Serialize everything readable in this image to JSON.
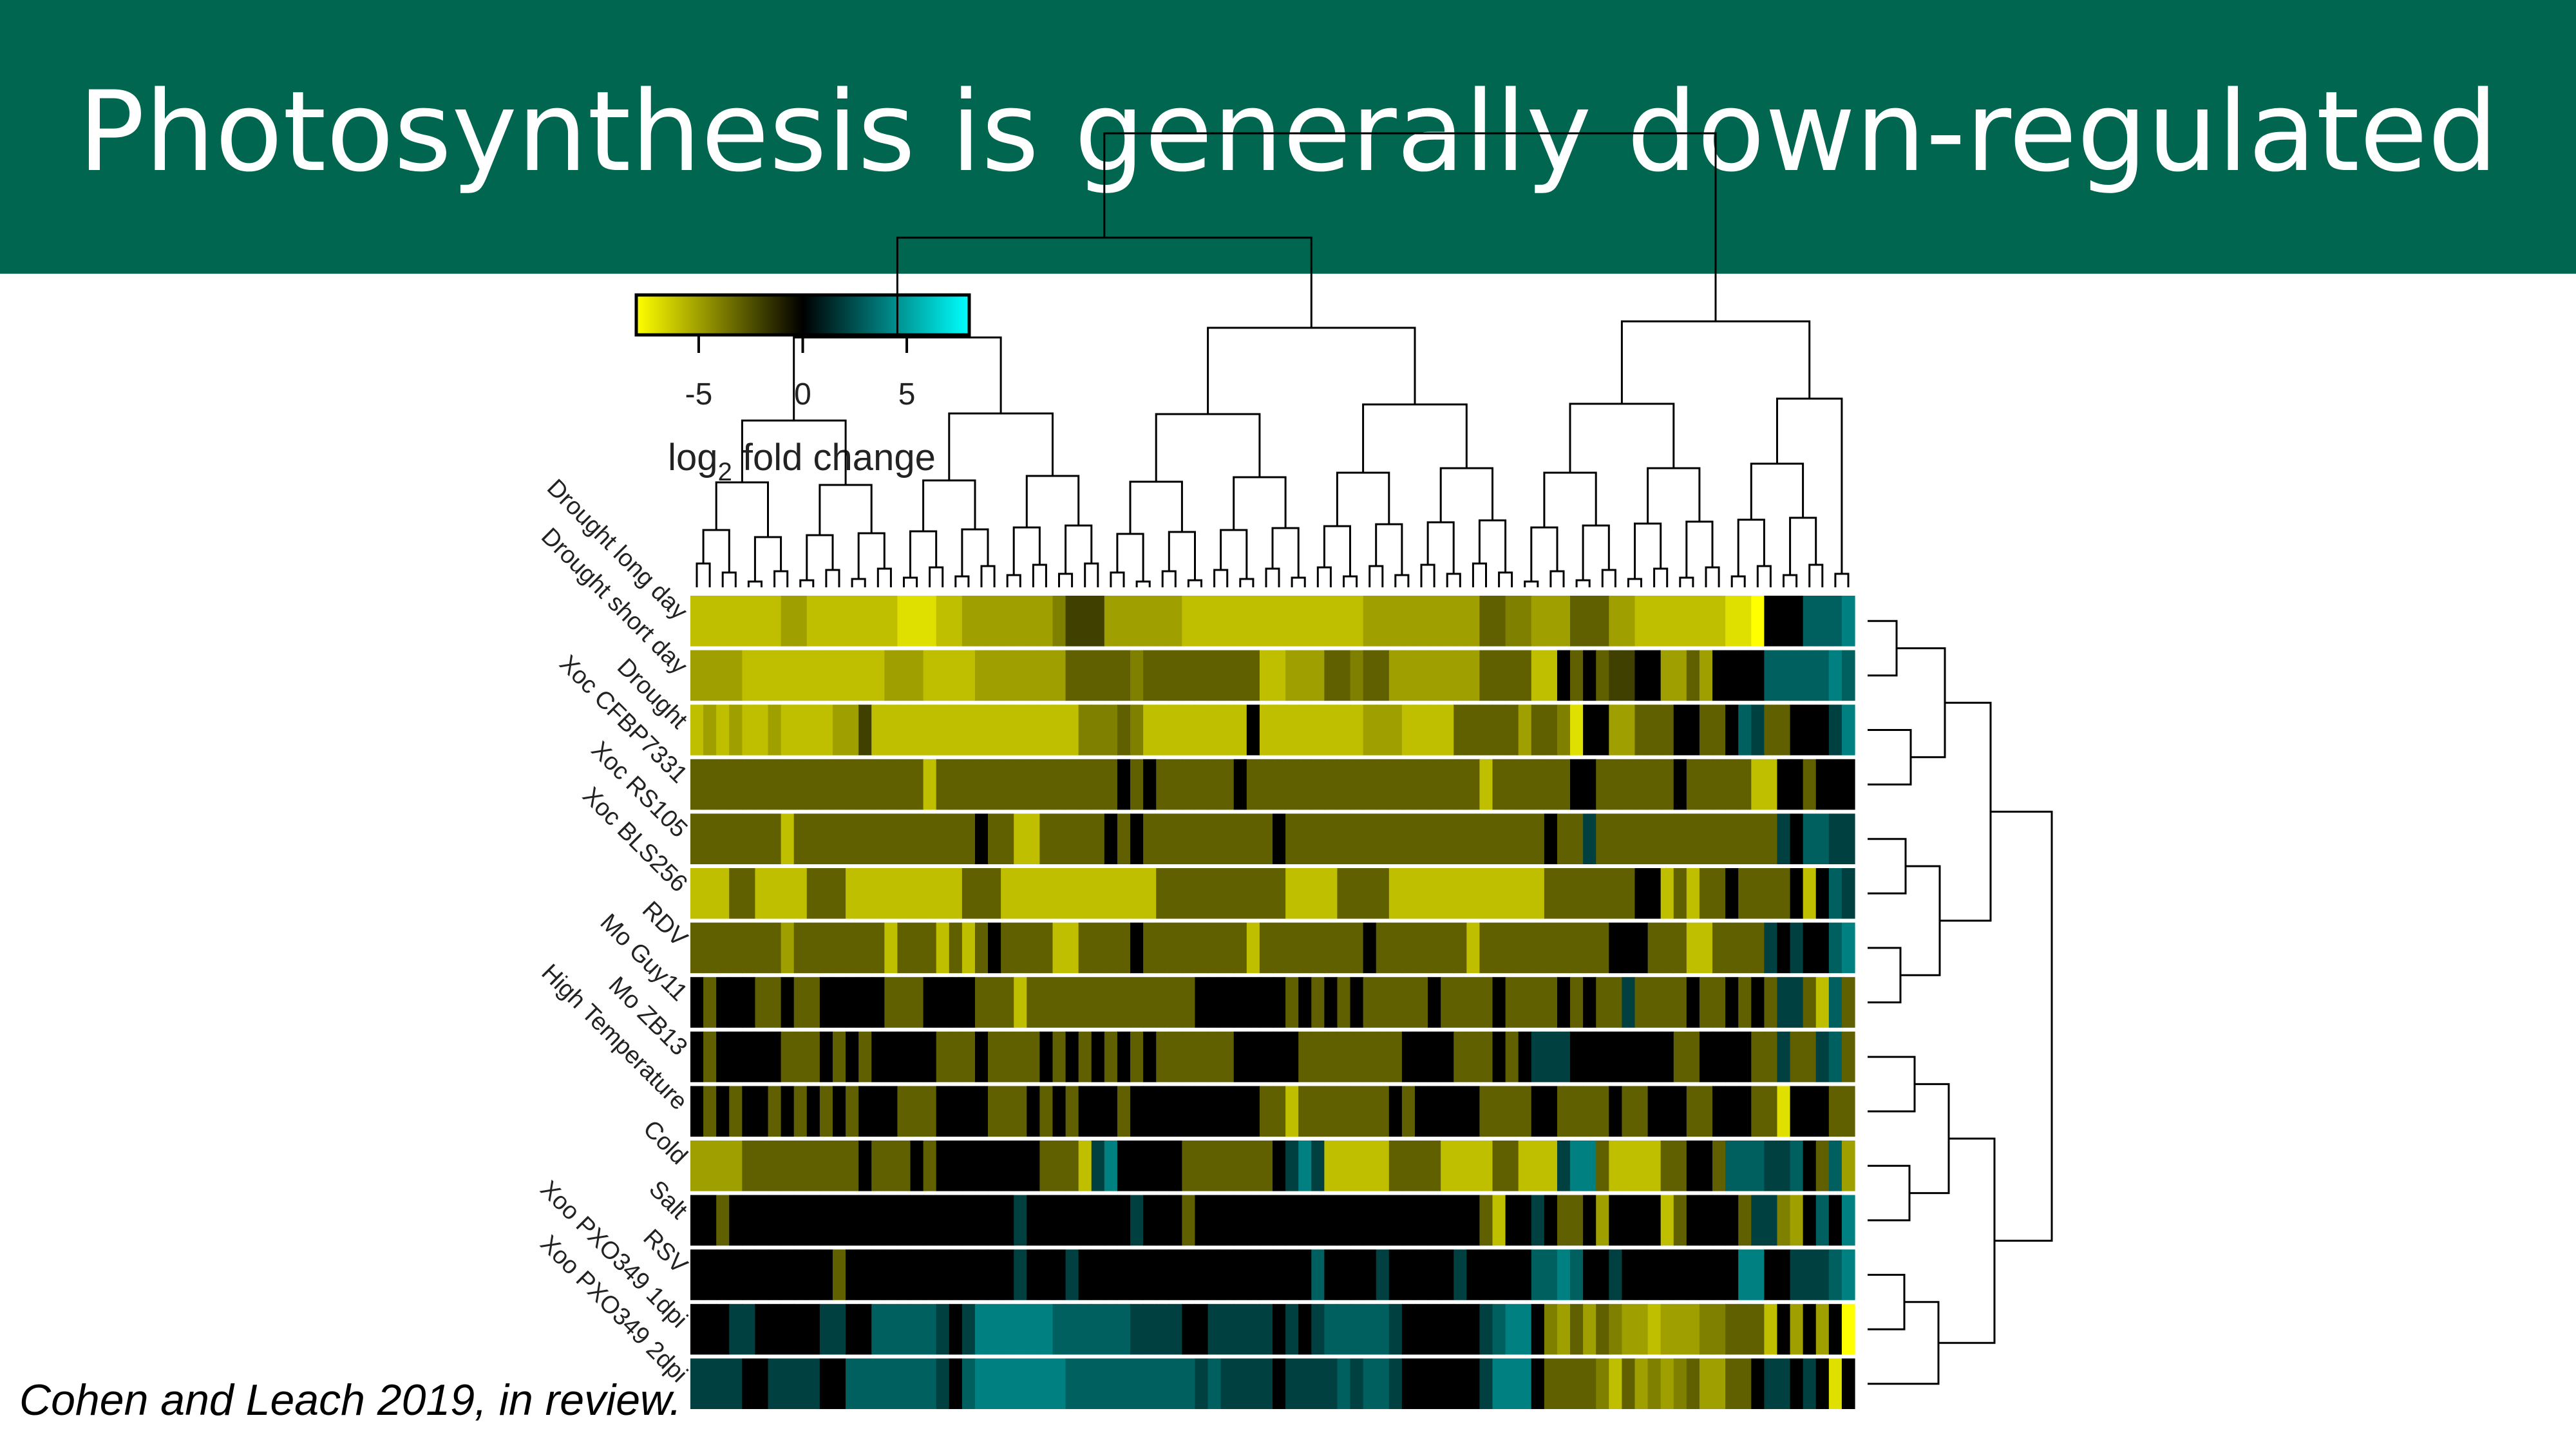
{
  "slide": {
    "title": "Photosynthesis is generally down-regulated",
    "citation": "Cohen and Leach 2019, in review."
  },
  "colors": {
    "header_bg": "#00664f",
    "header_text": "#ffffff",
    "scale_low": "#ffff00",
    "scale_mid": "#000000",
    "scale_high": "#00ffff"
  },
  "chart_data": {
    "type": "heatmap",
    "title": "",
    "rows": [
      "Drought long day",
      "Drought short day",
      "Drought",
      "Xoc CFBP7331",
      "Xoc RS105",
      "Xoc BLS256",
      "RDV",
      "Mo Guy11",
      "Mo ZB13",
      "High Temperature",
      "Cold",
      "Salt",
      "RSV",
      "Xoo PXO349 1dpi",
      "Xoo PXO349 2dpi"
    ],
    "column_count": 90,
    "value_range": [
      -8,
      8
    ],
    "colorbar": {
      "title_prefix": "log",
      "title_sub": "2",
      "title_suffix": " fold change",
      "ticks": [
        "-5",
        "0",
        "5"
      ],
      "tick_values": [
        -5,
        0,
        5
      ],
      "range": [
        -8,
        8
      ]
    },
    "row_dendrogram": true,
    "column_dendrogram": true,
    "values": [
      [
        -6,
        -6,
        -6,
        -6,
        -6,
        -6,
        -6,
        -5,
        -5,
        -6,
        -6,
        -6,
        -6,
        -6,
        -6,
        -6,
        -7,
        -7,
        -7,
        -6,
        -6,
        -5,
        -5,
        -5,
        -5,
        -5,
        -5,
        -5,
        -4,
        -2,
        -2,
        -2,
        -5,
        -5,
        -5,
        -5,
        -5,
        -5,
        -6,
        -6,
        -6,
        -6,
        -6,
        -6,
        -6,
        -6,
        -6,
        -6,
        -6,
        -6,
        -6,
        -6,
        -5,
        -5,
        -5,
        -5,
        -5,
        -5,
        -5,
        -5,
        -5,
        -3,
        -3,
        -4,
        -4,
        -5,
        -5,
        -5,
        -3,
        -3,
        -3,
        -5,
        -5,
        -6,
        -6,
        -6,
        -6,
        -6,
        -6,
        -6,
        -7,
        -7,
        -8,
        0,
        0,
        0,
        3,
        3,
        3,
        4
      ],
      [
        -5,
        -5,
        -5,
        -5,
        -6,
        -6,
        -6,
        -6,
        -6,
        -6,
        -6,
        -6,
        -6,
        -6,
        -6,
        -5,
        -5,
        -5,
        -6,
        -6,
        -6,
        -6,
        -5,
        -5,
        -5,
        -5,
        -5,
        -5,
        -5,
        -3,
        -3,
        -3,
        -3,
        -3,
        -4,
        -3,
        -3,
        -3,
        -3,
        -3,
        -3,
        -3,
        -3,
        -3,
        -6,
        -6,
        -5,
        -5,
        -5,
        -3,
        -3,
        -4,
        -3,
        -3,
        -5,
        -5,
        -5,
        -5,
        -5,
        -5,
        -5,
        -3,
        -3,
        -3,
        -3,
        -6,
        -6,
        0,
        -3,
        0,
        -3,
        -2,
        -2,
        0,
        0,
        -5,
        -5,
        -3,
        -5,
        0,
        0,
        0,
        0,
        3,
        3,
        3,
        3,
        3,
        4,
        3
      ],
      [
        -6,
        -5,
        -6,
        -5,
        -6,
        -6,
        -5,
        -6,
        -6,
        -6,
        -6,
        -5,
        -5,
        -2,
        -6,
        -6,
        -6,
        -6,
        -6,
        -6,
        -6,
        -6,
        -6,
        -6,
        -6,
        -6,
        -6,
        -6,
        -6,
        -6,
        -4,
        -4,
        -4,
        -3,
        -4,
        -6,
        -6,
        -6,
        -6,
        -6,
        -6,
        -6,
        -6,
        0,
        -6,
        -6,
        -6,
        -6,
        -6,
        -6,
        -6,
        -6,
        -5,
        -5,
        -5,
        -6,
        -6,
        -6,
        -6,
        -3,
        -3,
        -3,
        -3,
        -3,
        -5,
        -3,
        -3,
        -4,
        -7,
        0,
        0,
        -5,
        -5,
        -3,
        -3,
        -3,
        0,
        0,
        -3,
        -3,
        0,
        3,
        2,
        -3,
        -3,
        0,
        0,
        0,
        2,
        4
      ],
      [
        -3,
        -3,
        -3,
        -3,
        -3,
        -3,
        -3,
        -3,
        -3,
        -3,
        -3,
        -3,
        -3,
        -3,
        -3,
        -3,
        -3,
        -3,
        -6,
        -3,
        -3,
        -3,
        -3,
        -3,
        -3,
        -3,
        -3,
        -3,
        -3,
        -3,
        -3,
        -3,
        -3,
        0,
        -3,
        0,
        -3,
        -3,
        -3,
        -3,
        -3,
        -3,
        0,
        -3,
        -3,
        -3,
        -3,
        -3,
        -3,
        -3,
        -3,
        -3,
        -3,
        -3,
        -3,
        -3,
        -3,
        -3,
        -3,
        -3,
        -3,
        -6,
        -3,
        -3,
        -3,
        -3,
        -3,
        -3,
        0,
        0,
        -3,
        -3,
        -3,
        -3,
        -3,
        -3,
        0,
        -3,
        -3,
        -3,
        -3,
        -3,
        -6,
        -6,
        0,
        0,
        -3,
        0,
        0,
        0
      ],
      [
        -3,
        -3,
        -3,
        -3,
        -3,
        -3,
        -3,
        -6,
        -3,
        -3,
        -3,
        -3,
        -3,
        -3,
        -3,
        -3,
        -3,
        -3,
        -3,
        -3,
        -3,
        -3,
        0,
        -3,
        -3,
        -6,
        -6,
        -3,
        -3,
        -3,
        -3,
        -3,
        0,
        -3,
        0,
        -3,
        -3,
        -3,
        -3,
        -3,
        -3,
        -3,
        -3,
        -3,
        -3,
        0,
        -3,
        -3,
        -3,
        -3,
        -3,
        -3,
        -3,
        -3,
        -3,
        -3,
        -3,
        -3,
        -3,
        -3,
        -3,
        -3,
        -3,
        -3,
        -3,
        -3,
        0,
        -3,
        -3,
        2,
        -3,
        -3,
        -3,
        -3,
        -3,
        -3,
        -3,
        -3,
        -3,
        -3,
        -3,
        -3,
        -3,
        -3,
        2,
        0,
        3,
        3,
        2,
        2
      ],
      [
        -6,
        -6,
        -6,
        -3,
        -3,
        -6,
        -6,
        -6,
        -6,
        -3,
        -3,
        -3,
        -6,
        -6,
        -6,
        -6,
        -6,
        -6,
        -6,
        -6,
        -6,
        -3,
        -3,
        -3,
        -6,
        -6,
        -6,
        -6,
        -6,
        -6,
        -6,
        -6,
        -6,
        -6,
        -6,
        -6,
        -3,
        -3,
        -3,
        -3,
        -3,
        -3,
        -3,
        -3,
        -3,
        -3,
        -6,
        -6,
        -6,
        -6,
        -3,
        -3,
        -3,
        -3,
        -6,
        -6,
        -6,
        -6,
        -6,
        -6,
        -6,
        -6,
        -6,
        -6,
        -6,
        -6,
        -3,
        -3,
        -3,
        -3,
        -3,
        -3,
        -3,
        0,
        0,
        -6,
        -3,
        -6,
        -3,
        -3,
        0,
        -3,
        -3,
        -3,
        -3,
        0,
        -6,
        0,
        3,
        2
      ],
      [
        -3,
        -3,
        -3,
        -3,
        -3,
        -3,
        -3,
        -5,
        -3,
        -3,
        -3,
        -3,
        -3,
        -3,
        -3,
        -6,
        -3,
        -3,
        -3,
        -6,
        -3,
        -6,
        -3,
        0,
        -3,
        -3,
        -3,
        -3,
        -6,
        -6,
        -3,
        -3,
        -3,
        -3,
        0,
        -3,
        -3,
        -3,
        -3,
        -3,
        -3,
        -3,
        -3,
        -6,
        -3,
        -3,
        -3,
        -3,
        -3,
        -3,
        -3,
        -3,
        0,
        -3,
        -3,
        -3,
        -3,
        -3,
        -3,
        -3,
        -6,
        -3,
        -3,
        -3,
        -3,
        -3,
        -3,
        -3,
        -3,
        -3,
        -3,
        0,
        0,
        0,
        -3,
        -3,
        -3,
        -6,
        -6,
        -3,
        -3,
        -3,
        -3,
        2,
        0,
        2,
        0,
        0,
        3,
        4
      ],
      [
        0,
        -3,
        0,
        0,
        0,
        -3,
        -3,
        0,
        -3,
        -3,
        0,
        0,
        0,
        0,
        0,
        -3,
        -3,
        -3,
        0,
        0,
        0,
        0,
        -3,
        -3,
        -3,
        -6,
        -3,
        -3,
        -3,
        -3,
        -3,
        -3,
        -3,
        -3,
        -3,
        -3,
        -3,
        -3,
        -3,
        0,
        0,
        0,
        0,
        0,
        0,
        0,
        -3,
        0,
        -3,
        0,
        -3,
        0,
        -3,
        -3,
        -3,
        -3,
        -3,
        0,
        -3,
        -3,
        -3,
        -3,
        0,
        -3,
        -3,
        -3,
        -3,
        0,
        -3,
        0,
        -3,
        -3,
        2,
        -3,
        -3,
        -3,
        -3,
        0,
        -3,
        -3,
        0,
        -3,
        0,
        -3,
        2,
        2,
        -3,
        -6,
        3,
        -3
      ],
      [
        0,
        -3,
        0,
        0,
        0,
        0,
        0,
        -3,
        -3,
        -3,
        0,
        -3,
        0,
        -3,
        0,
        0,
        0,
        0,
        0,
        -3,
        -3,
        -3,
        0,
        -3,
        -3,
        -3,
        -3,
        0,
        -3,
        0,
        -3,
        0,
        -3,
        0,
        -3,
        0,
        -3,
        -3,
        -3,
        -3,
        -3,
        -3,
        0,
        0,
        0,
        0,
        0,
        -3,
        -3,
        -3,
        -3,
        -3,
        -3,
        -3,
        -3,
        0,
        0,
        0,
        0,
        -3,
        -3,
        -3,
        0,
        -3,
        0,
        2,
        2,
        2,
        0,
        0,
        0,
        0,
        0,
        0,
        0,
        0,
        -3,
        -3,
        0,
        0,
        0,
        0,
        -3,
        -3,
        2,
        -3,
        -3,
        2,
        3,
        -3
      ],
      [
        0,
        -3,
        0,
        -3,
        0,
        0,
        -3,
        0,
        -3,
        0,
        -3,
        0,
        -3,
        0,
        0,
        0,
        -3,
        -3,
        -3,
        0,
        0,
        0,
        0,
        -3,
        -3,
        -3,
        0,
        -3,
        0,
        -3,
        0,
        0,
        0,
        -3,
        0,
        0,
        0,
        0,
        0,
        0,
        0,
        0,
        0,
        0,
        -3,
        -3,
        -6,
        -3,
        -3,
        -3,
        -3,
        -3,
        -3,
        -3,
        0,
        -3,
        0,
        0,
        0,
        0,
        0,
        -3,
        -3,
        -3,
        -3,
        0,
        0,
        -3,
        -3,
        -3,
        -3,
        0,
        -3,
        -3,
        0,
        0,
        0,
        -3,
        -3,
        0,
        0,
        0,
        -3,
        -3,
        -7,
        0,
        0,
        0,
        -3,
        -3
      ],
      [
        -5,
        -5,
        -5,
        -5,
        -3,
        -3,
        -3,
        -3,
        -3,
        -3,
        -3,
        -3,
        -3,
        0,
        -3,
        -3,
        -3,
        0,
        -3,
        0,
        0,
        0,
        0,
        0,
        0,
        0,
        0,
        -3,
        -3,
        -3,
        -6,
        2,
        4,
        0,
        0,
        0,
        0,
        0,
        -3,
        -3,
        -3,
        -3,
        -3,
        -3,
        -3,
        0,
        2,
        4,
        2,
        -6,
        -6,
        -6,
        -6,
        -6,
        -3,
        -3,
        -3,
        -3,
        -6,
        -6,
        -6,
        -6,
        -3,
        -3,
        -6,
        -6,
        -6,
        2,
        4,
        4,
        -3,
        -6,
        -6,
        -6,
        -6,
        -3,
        -3,
        0,
        0,
        -3,
        3,
        3,
        3,
        2,
        2,
        3,
        0,
        -3,
        3,
        -5
      ],
      [
        0,
        0,
        -3,
        0,
        0,
        0,
        0,
        0,
        0,
        0,
        0,
        0,
        0,
        0,
        0,
        0,
        0,
        0,
        0,
        0,
        0,
        0,
        0,
        0,
        0,
        2,
        0,
        0,
        0,
        0,
        0,
        0,
        0,
        0,
        2,
        0,
        0,
        0,
        -3,
        0,
        0,
        0,
        0,
        0,
        0,
        0,
        0,
        0,
        0,
        0,
        0,
        0,
        0,
        0,
        0,
        0,
        0,
        0,
        0,
        0,
        0,
        -3,
        -6,
        0,
        0,
        2,
        0,
        -3,
        -3,
        0,
        -5,
        0,
        0,
        0,
        0,
        -6,
        -3,
        0,
        0,
        0,
        0,
        -3,
        2,
        2,
        -4,
        -5,
        0,
        3,
        0,
        4
      ],
      [
        0,
        0,
        0,
        0,
        0,
        0,
        0,
        0,
        0,
        0,
        0,
        -3,
        0,
        0,
        0,
        0,
        0,
        0,
        0,
        0,
        0,
        0,
        0,
        0,
        0,
        2,
        0,
        0,
        0,
        2,
        0,
        0,
        0,
        0,
        0,
        0,
        0,
        0,
        0,
        0,
        0,
        0,
        0,
        0,
        0,
        0,
        0,
        0,
        3,
        0,
        0,
        0,
        0,
        2,
        0,
        0,
        0,
        0,
        0,
        2,
        0,
        0,
        0,
        0,
        0,
        3,
        3,
        4,
        3,
        0,
        0,
        2,
        0,
        0,
        0,
        0,
        0,
        0,
        0,
        0,
        0,
        4,
        4,
        0,
        0,
        2,
        2,
        2,
        3,
        4
      ],
      [
        0,
        0,
        0,
        2,
        2,
        0,
        0,
        0,
        0,
        0,
        2,
        2,
        0,
        0,
        3,
        3,
        3,
        3,
        3,
        2,
        0,
        2,
        4,
        4,
        4,
        4,
        4,
        4,
        3,
        3,
        3,
        3,
        3,
        3,
        2,
        2,
        2,
        2,
        0,
        0,
        2,
        2,
        2,
        2,
        2,
        0,
        2,
        0,
        2,
        3,
        3,
        3,
        3,
        3,
        2,
        0,
        0,
        0,
        0,
        0,
        0,
        2,
        3,
        4,
        4,
        0,
        -4,
        -5,
        -3,
        -5,
        -3,
        -4,
        -5,
        -5,
        -6,
        -5,
        -5,
        -5,
        -4,
        -4,
        -3,
        -3,
        -3,
        -6,
        0,
        -5,
        0,
        -5,
        0,
        -8
      ],
      [
        2,
        2,
        2,
        2,
        0,
        0,
        2,
        2,
        2,
        2,
        0,
        0,
        3,
        3,
        3,
        3,
        3,
        3,
        3,
        2,
        0,
        3,
        4,
        4,
        4,
        4,
        4,
        4,
        4,
        3,
        3,
        3,
        3,
        3,
        3,
        3,
        3,
        3,
        3,
        2,
        3,
        2,
        2,
        2,
        2,
        0,
        2,
        2,
        2,
        2,
        3,
        2,
        3,
        3,
        2,
        0,
        0,
        0,
        0,
        0,
        0,
        2,
        4,
        4,
        4,
        0,
        -3,
        -3,
        -3,
        -3,
        -4,
        -6,
        -3,
        -5,
        -4,
        -5,
        -4,
        -3,
        -5,
        -5,
        -3,
        -3,
        0,
        2,
        2,
        0,
        2,
        0,
        -7,
        0
      ]
    ]
  }
}
